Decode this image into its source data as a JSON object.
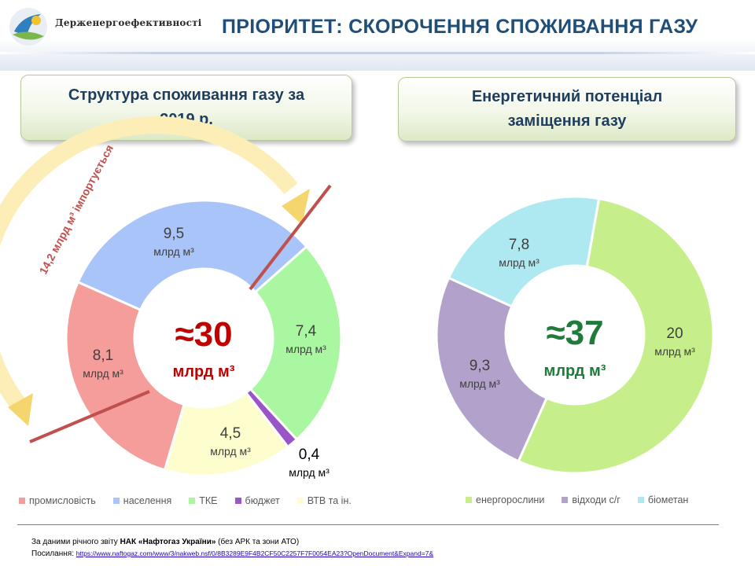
{
  "header": {
    "org_name": "Держенергоефективності",
    "title": "ПРІОРИТЕТ: СКОРОЧЕННЯ СПОЖИВАННЯ ГАЗУ"
  },
  "left_section": {
    "title_line1": "Структура споживання газу за",
    "title_line2": "2019 р.",
    "center_value": "≈30",
    "center_unit": "млрд м³",
    "import_value": "14,2",
    "import_text": " млрд м³ імпортується"
  },
  "right_section": {
    "title_line1": "Енергетичний потенціал",
    "title_line2": "заміщення газу",
    "center_value": "≈37",
    "center_unit": "млрд м³"
  },
  "chart_data": [
    {
      "type": "pie",
      "title": "Структура споживання газу за 2019 р.",
      "unit": "млрд м³",
      "categories": [
        "промисловість",
        "населення",
        "ТКЕ",
        "бюджет",
        "ВТВ та ін."
      ],
      "values": [
        8.1,
        9.5,
        7.4,
        0.4,
        4.5
      ],
      "value_labels": [
        "8,1",
        "9,5",
        "7,4",
        "0,4",
        "4,5"
      ],
      "colors": [
        "#f49d9b",
        "#a8c4f8",
        "#aaf7a1",
        "#9a55c6",
        "#fdfdcd"
      ],
      "legend_position": "bottom"
    },
    {
      "type": "pie",
      "title": "Енергетичний потенціал заміщення газу",
      "unit": "млрд м³",
      "categories": [
        "енергорослини",
        "відходи с/г",
        "біометан"
      ],
      "values": [
        20,
        9.3,
        7.8
      ],
      "value_labels": [
        "20",
        "9,3",
        "7,8"
      ],
      "colors": [
        "#c6ef8b",
        "#b2a2cb",
        "#aee9f2"
      ],
      "legend_position": "bottom"
    }
  ],
  "footer": {
    "line1_prefix": "За  даними річного звіту ",
    "line1_bold": "НАК «Нафтогаз України»",
    "line1_suffix": "  (без АРК та зони АТО)",
    "line2_label": "Посилання: ",
    "link": "https://www.naftogaz.com/www/3/nakweb.nsf/0/8B3289E9F4B2CF50C2257F7F0054EA23?OpenDocument&Expand=7&"
  }
}
